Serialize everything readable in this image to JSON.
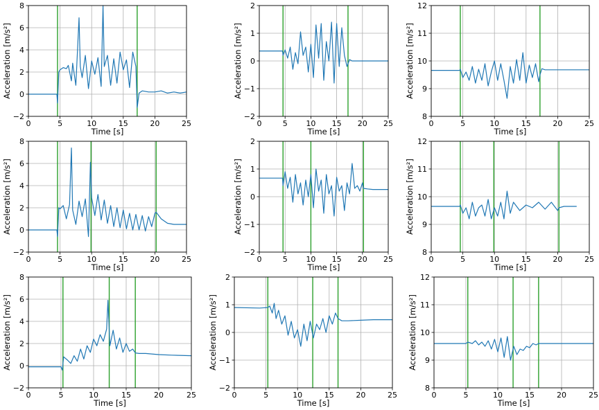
{
  "colors": {
    "series": "#1f77b4",
    "marker": "#2ca02c",
    "marker_dark": "#006400",
    "grid": "#b0b0b0",
    "axis": "#000000"
  },
  "chart_data": [
    {
      "type": "line",
      "xlabel": "Time [s]",
      "ylabel": "Acceleration [m/s²]",
      "xlim": [
        0,
        25
      ],
      "ylim": [
        -2,
        8
      ],
      "xticks": [
        "0",
        "5",
        "10",
        "15",
        "20",
        "25"
      ],
      "yticks": [
        "−2",
        "0",
        "2",
        "4",
        "6",
        "8"
      ],
      "markers": [
        4.6,
        17.2
      ],
      "series": [
        {
          "name": "acceleration",
          "x": [
            0,
            4.5,
            4.6,
            4.8,
            5,
            5.5,
            6,
            6.3,
            6.8,
            7,
            7.5,
            8,
            8.2,
            8.5,
            9,
            9.5,
            10,
            10.5,
            11,
            11.5,
            11.8,
            12,
            12.5,
            13,
            13.5,
            14,
            14.5,
            15,
            15.5,
            16,
            16.5,
            17,
            17.2,
            17.5,
            18,
            19,
            20,
            21,
            22,
            23,
            24,
            25
          ],
          "y": [
            0,
            0,
            -0.8,
            2,
            2.2,
            2.4,
            2.3,
            2.6,
            1.2,
            2.8,
            0.8,
            6.9,
            2.5,
            1.5,
            3.5,
            0.5,
            3,
            1.8,
            3.3,
            0.7,
            8,
            2.5,
            3.5,
            0.8,
            3.2,
            1,
            3.8,
            2.2,
            3.1,
            0.6,
            3.8,
            2.5,
            -1.2,
            0.1,
            0.3,
            0.2,
            0.2,
            0.3,
            0.1,
            0.2,
            0.1,
            0.2
          ]
        }
      ]
    },
    {
      "type": "line",
      "xlabel": "Time [s]",
      "ylabel": "Acceleration [m/s²]",
      "xlim": [
        0,
        25
      ],
      "ylim": [
        -2,
        2
      ],
      "xticks": [
        "0",
        "5",
        "10",
        "15",
        "20",
        "25"
      ],
      "yticks": [
        "−2",
        "−1",
        "0",
        "1",
        "2"
      ],
      "markers": [
        4.6,
        17.2
      ],
      "series": [
        {
          "name": "acceleration",
          "x": [
            0,
            4.5,
            4.6,
            5,
            5.5,
            6,
            6.5,
            7,
            7.5,
            8,
            8.5,
            9,
            9.5,
            10,
            10.5,
            11,
            11.5,
            12,
            12.5,
            13,
            13.5,
            14,
            14.5,
            15,
            15.5,
            16,
            16.5,
            17,
            17.5,
            18,
            20,
            22,
            25
          ],
          "y": [
            0.36,
            0.36,
            0.2,
            0.4,
            0.1,
            0.5,
            -0.3,
            0.3,
            -0.1,
            1.05,
            0.2,
            0.5,
            -0.4,
            0.6,
            -0.6,
            1.3,
            0.1,
            1.35,
            -0.7,
            0.7,
            0,
            1.4,
            -0.8,
            1.35,
            -0.2,
            1.2,
            0.2,
            -0.2,
            0.05,
            0,
            0,
            0,
            0
          ]
        }
      ]
    },
    {
      "type": "line",
      "xlabel": "Time [s]",
      "ylabel": "Acceleration [m/s²]",
      "xlim": [
        0,
        25
      ],
      "ylim": [
        8,
        12
      ],
      "xticks": [
        "0",
        "5",
        "10",
        "15",
        "20",
        "25"
      ],
      "yticks": [
        "8",
        "9",
        "10",
        "11",
        "12"
      ],
      "markers": [
        4.6,
        17.2
      ],
      "series": [
        {
          "name": "acceleration",
          "x": [
            0,
            4.5,
            4.6,
            5,
            5.5,
            6,
            6.5,
            7,
            7.5,
            8,
            8.5,
            9,
            9.5,
            10,
            10.5,
            11,
            11.5,
            12,
            12.5,
            13,
            13.5,
            14,
            14.5,
            15,
            15.5,
            16,
            16.5,
            17,
            17.2,
            17.5,
            18,
            20,
            22,
            25
          ],
          "y": [
            9.66,
            9.66,
            9.7,
            9.4,
            9.6,
            9.3,
            9.8,
            9.2,
            9.7,
            9.3,
            9.9,
            9.1,
            9.6,
            10,
            9.3,
            9.9,
            9.3,
            8.65,
            9.8,
            9.2,
            10.05,
            9.3,
            10.3,
            9.2,
            9.85,
            9.4,
            9.9,
            9.25,
            9.5,
            9.72,
            9.68,
            9.68,
            9.68,
            9.68
          ]
        }
      ]
    },
    {
      "type": "line",
      "xlabel": "Time [s]",
      "ylabel": "Acceleration [m/s²]",
      "xlim": [
        0,
        25
      ],
      "ylim": [
        -2,
        8
      ],
      "xticks": [
        "0",
        "5",
        "10",
        "15",
        "20",
        "25"
      ],
      "yticks": [
        "−2",
        "0",
        "2",
        "4",
        "6",
        "8"
      ],
      "markers": [
        4.6,
        9.9,
        20.2
      ],
      "series": [
        {
          "name": "acceleration",
          "x": [
            0,
            4.5,
            4.6,
            4.8,
            5,
            5.5,
            6,
            6.5,
            6.8,
            7,
            7.5,
            8,
            8.5,
            9,
            9.5,
            9.8,
            10,
            10.5,
            11,
            11.5,
            12,
            12.5,
            13,
            13.5,
            14,
            14.5,
            15,
            15.5,
            16,
            16.5,
            17,
            17.5,
            18,
            18.5,
            19,
            19.5,
            20,
            20.2,
            21,
            22,
            23,
            24,
            25
          ],
          "y": [
            0,
            0,
            -0.6,
            2,
            1.9,
            2.2,
            1,
            2.3,
            7.4,
            1.8,
            0.5,
            2.6,
            1.2,
            2.8,
            -0.6,
            6.1,
            2.9,
            1.3,
            3.2,
            0.9,
            2.7,
            0.6,
            2.2,
            0.3,
            2,
            0.2,
            1.8,
            0.1,
            1.5,
            0,
            1.4,
            0,
            1.3,
            -0.1,
            1.2,
            0.3,
            1.5,
            1.6,
            1,
            0.6,
            0.5,
            0.5,
            0.5
          ]
        }
      ]
    },
    {
      "type": "line",
      "xlabel": "Time [s]",
      "ylabel": "Acceleration [m/s²]",
      "xlim": [
        0,
        25
      ],
      "ylim": [
        -2,
        2
      ],
      "xticks": [
        "0",
        "5",
        "10",
        "15",
        "20",
        "25"
      ],
      "yticks": [
        "−2",
        "−1",
        "0",
        "1",
        "2"
      ],
      "markers": [
        4.6,
        10,
        20.2
      ],
      "series": [
        {
          "name": "acceleration",
          "x": [
            0,
            4.5,
            4.6,
            5,
            5.5,
            6,
            6.5,
            7,
            7.5,
            8,
            8.5,
            9,
            9.5,
            10,
            10.5,
            11,
            11.5,
            12,
            12.5,
            13,
            13.5,
            14,
            14.5,
            15,
            15.5,
            16,
            16.5,
            17,
            17.5,
            18,
            18.5,
            19,
            19.5,
            20,
            20.2,
            21,
            22,
            25
          ],
          "y": [
            0.67,
            0.67,
            0.4,
            0.9,
            0.3,
            0.7,
            -0.2,
            0.8,
            0.1,
            0.5,
            -0.3,
            0.6,
            0,
            0.8,
            -0.4,
            1,
            0.2,
            0.6,
            -0.6,
            0.8,
            0.1,
            0.4,
            -0.7,
            0.7,
            0.2,
            0.4,
            -0.5,
            0.5,
            0.1,
            1.2,
            0.3,
            0.4,
            0.2,
            0.5,
            0.3,
            0.28,
            0.26,
            0.26
          ]
        }
      ]
    },
    {
      "type": "line",
      "xlabel": "Time [s]",
      "ylabel": "Acceleration [m/s²]",
      "xlim": [
        0,
        25
      ],
      "ylim": [
        8,
        12
      ],
      "xticks": [
        "0",
        "5",
        "10",
        "15",
        "20",
        "25"
      ],
      "yticks": [
        "8",
        "9",
        "10",
        "11",
        "12"
      ],
      "markers": [
        4.6,
        9.9,
        20.2
      ],
      "series": [
        {
          "name": "acceleration",
          "x": [
            0,
            4.5,
            4.6,
            5,
            5.5,
            6,
            6.5,
            7,
            7.5,
            8,
            8.5,
            9,
            9.5,
            10,
            10.5,
            11,
            11.5,
            12,
            12.5,
            13,
            14,
            15,
            16,
            17,
            18,
            19,
            20,
            20.2,
            21,
            22,
            23
          ],
          "y": [
            9.65,
            9.65,
            9.7,
            9.4,
            9.6,
            9.2,
            9.8,
            9.3,
            9.6,
            9.7,
            9.3,
            9.9,
            9.2,
            9.6,
            9.3,
            9.8,
            9.2,
            10.2,
            9.4,
            9.8,
            9.5,
            9.7,
            9.6,
            9.8,
            9.55,
            9.8,
            9.5,
            9.6,
            9.65,
            9.65,
            9.65
          ]
        }
      ]
    },
    {
      "type": "line",
      "xlabel": "Time [s]",
      "ylabel": "Acceleration [m/s²]",
      "xlim": [
        0,
        25
      ],
      "ylim": [
        -2,
        8
      ],
      "xticks": [
        "0",
        "5",
        "10",
        "15",
        "20",
        "25"
      ],
      "yticks": [
        "−2",
        "0",
        "2",
        "4",
        "6",
        "8"
      ],
      "markers": [
        5.3,
        12.4,
        16.4
      ],
      "series": [
        {
          "name": "acceleration",
          "x": [
            0,
            5,
            5.2,
            5.4,
            6,
            6.5,
            7,
            7.5,
            8,
            8.5,
            9,
            9.5,
            10,
            10.5,
            11,
            11.5,
            12,
            12.2,
            12.5,
            13,
            13.5,
            14,
            14.5,
            15,
            15.5,
            16,
            16.4,
            17,
            18,
            20,
            22,
            25
          ],
          "y": [
            -0.1,
            -0.1,
            -0.4,
            0.8,
            0.5,
            0.2,
            0.9,
            0.4,
            1.5,
            0.6,
            1.8,
            1.2,
            2.4,
            1.8,
            2.8,
            2.2,
            3.3,
            5.9,
            1.8,
            3.2,
            1.5,
            2.5,
            1.2,
            2,
            1.3,
            1.5,
            1.15,
            1.1,
            1.1,
            1,
            0.95,
            0.9
          ]
        }
      ]
    },
    {
      "type": "line",
      "xlabel": "Time [s]",
      "ylabel": "Acceleration [m/s²]",
      "xlim": [
        0,
        25
      ],
      "ylim": [
        -2,
        2
      ],
      "xticks": [
        "0",
        "5",
        "10",
        "15",
        "20",
        "25"
      ],
      "yticks": [
        "−2",
        "−1",
        "0",
        "1",
        "2"
      ],
      "markers": [
        5.3,
        12.4,
        16.4
      ],
      "series": [
        {
          "name": "acceleration",
          "x": [
            0,
            4,
            5.3,
            5.6,
            6,
            6.3,
            6.6,
            7,
            7.5,
            8,
            8.5,
            9,
            9.5,
            10,
            10.5,
            11,
            11.5,
            12,
            12.5,
            13,
            13.5,
            14,
            14.5,
            15,
            15.5,
            16,
            16.4,
            17,
            18,
            20,
            22,
            25
          ],
          "y": [
            0.9,
            0.88,
            0.9,
            0.95,
            0.7,
            1.05,
            0.5,
            0.8,
            0.3,
            0.6,
            -0.1,
            0.4,
            -0.2,
            0.1,
            -0.5,
            0.3,
            -0.3,
            0.4,
            -0.2,
            0.3,
            0.1,
            0.5,
            0,
            0.6,
            0.3,
            0.7,
            0.5,
            0.42,
            0.42,
            0.44,
            0.46,
            0.46
          ]
        }
      ]
    },
    {
      "type": "line",
      "xlabel": "Time [s]",
      "ylabel": "Acceleration [m/s²]",
      "xlim": [
        0,
        25
      ],
      "ylim": [
        8,
        12
      ],
      "xticks": [
        "0",
        "5",
        "10",
        "15",
        "20",
        "25"
      ],
      "yticks": [
        "8",
        "9",
        "10",
        "11",
        "12"
      ],
      "markers": [
        5.3,
        12.4,
        16.4
      ],
      "series": [
        {
          "name": "acceleration",
          "x": [
            0,
            5,
            5.3,
            6,
            6.5,
            7,
            7.5,
            8,
            8.5,
            9,
            9.5,
            10,
            10.5,
            11,
            11.5,
            12,
            12.5,
            13,
            13.5,
            14,
            14.5,
            15,
            15.5,
            16,
            16.4,
            17,
            18,
            20,
            22,
            25
          ],
          "y": [
            9.6,
            9.6,
            9.65,
            9.6,
            9.7,
            9.55,
            9.65,
            9.5,
            9.7,
            9.4,
            9.75,
            9.3,
            9.8,
            9.1,
            9.85,
            9,
            9.5,
            9.2,
            9.4,
            9.35,
            9.5,
            9.45,
            9.6,
            9.55,
            9.6,
            9.6,
            9.6,
            9.6,
            9.6,
            9.6
          ]
        }
      ]
    }
  ]
}
